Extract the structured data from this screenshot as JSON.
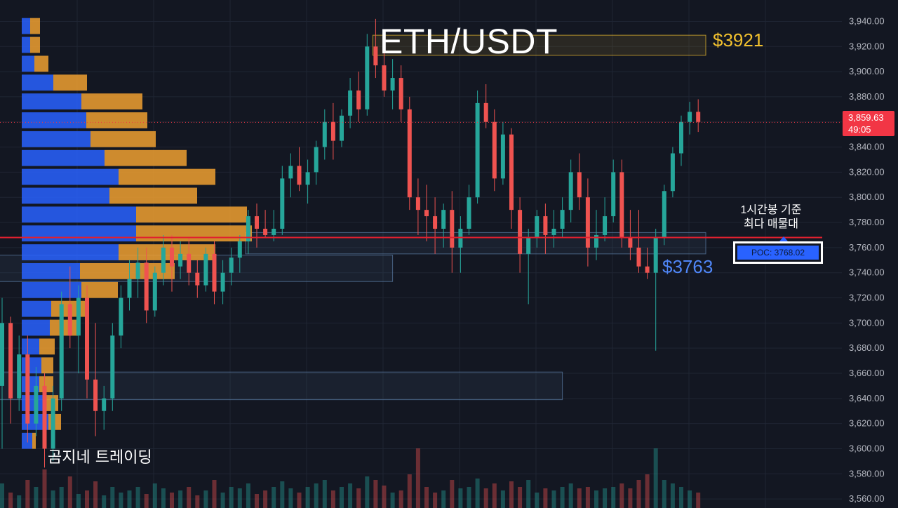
{
  "chart_data": {
    "type": "candlestick",
    "title": "ETH/USDT",
    "ylim": [
      3557,
      3945
    ],
    "y_ticks": [
      "3,940.00",
      "3,920.00",
      "3,900.00",
      "3,880.00",
      "3,860.00",
      "3,840.00",
      "3,820.00",
      "3,800.00",
      "3,780.00",
      "3,760.00",
      "3,740.00",
      "3,720.00",
      "3,700.00",
      "3,680.00",
      "3,660.00",
      "3,640.00",
      "3,620.00",
      "3,600.00",
      "3,580.00",
      "3,560.00"
    ],
    "y_tick_values": [
      3940,
      3920,
      3900,
      3880,
      3860,
      3840,
      3820,
      3800,
      3780,
      3760,
      3740,
      3720,
      3700,
      3680,
      3660,
      3640,
      3620,
      3600,
      3580,
      3560
    ],
    "last_price": "3,859.63",
    "last_price_value": 3859.63,
    "countdown": "49:05",
    "poc_value": 3768.0,
    "grid": true,
    "candles": [
      [
        3650,
        3720,
        3600,
        3700
      ],
      [
        3700,
        3705,
        3620,
        3640
      ],
      [
        3640,
        3690,
        3630,
        3675
      ],
      [
        3675,
        3690,
        3605,
        3620
      ],
      [
        3620,
        3665,
        3610,
        3650
      ],
      [
        3650,
        3660,
        3585,
        3600
      ],
      [
        3600,
        3650,
        3590,
        3640
      ],
      [
        3640,
        3725,
        3630,
        3715
      ],
      [
        3715,
        3745,
        3680,
        3690
      ],
      [
        3690,
        3730,
        3660,
        3720
      ],
      [
        3720,
        3730,
        3640,
        3655
      ],
      [
        3655,
        3700,
        3610,
        3630
      ],
      [
        3630,
        3650,
        3615,
        3640
      ],
      [
        3640,
        3700,
        3630,
        3690
      ],
      [
        3690,
        3730,
        3680,
        3720
      ],
      [
        3720,
        3750,
        3710,
        3735
      ],
      [
        3735,
        3760,
        3720,
        3748
      ],
      [
        3748,
        3760,
        3700,
        3710
      ],
      [
        3710,
        3745,
        3705,
        3740
      ],
      [
        3740,
        3770,
        3730,
        3760
      ],
      [
        3760,
        3770,
        3725,
        3745
      ],
      [
        3745,
        3765,
        3735,
        3755
      ],
      [
        3755,
        3768,
        3730,
        3740
      ],
      [
        3740,
        3750,
        3720,
        3730
      ],
      [
        3730,
        3760,
        3725,
        3755
      ],
      [
        3755,
        3765,
        3715,
        3725
      ],
      [
        3725,
        3750,
        3715,
        3740
      ],
      [
        3740,
        3760,
        3730,
        3752
      ],
      [
        3752,
        3770,
        3740,
        3765
      ],
      [
        3765,
        3790,
        3755,
        3785
      ],
      [
        3785,
        3795,
        3760,
        3775
      ],
      [
        3775,
        3790,
        3768,
        3770
      ],
      [
        3770,
        3790,
        3765,
        3775
      ],
      [
        3775,
        3825,
        3770,
        3815
      ],
      [
        3815,
        3835,
        3800,
        3825
      ],
      [
        3825,
        3840,
        3805,
        3810
      ],
      [
        3810,
        3830,
        3795,
        3820
      ],
      [
        3820,
        3845,
        3810,
        3840
      ],
      [
        3840,
        3870,
        3830,
        3860
      ],
      [
        3860,
        3875,
        3830,
        3845
      ],
      [
        3845,
        3870,
        3840,
        3865
      ],
      [
        3865,
        3895,
        3855,
        3885
      ],
      [
        3885,
        3900,
        3860,
        3870
      ],
      [
        3870,
        3930,
        3865,
        3920
      ],
      [
        3920,
        3942,
        3895,
        3905
      ],
      [
        3905,
        3920,
        3880,
        3885
      ],
      [
        3885,
        3910,
        3870,
        3895
      ],
      [
        3895,
        3905,
        3860,
        3870
      ],
      [
        3870,
        3880,
        3790,
        3800
      ],
      [
        3800,
        3815,
        3770,
        3790
      ],
      [
        3790,
        3810,
        3765,
        3785
      ],
      [
        3785,
        3800,
        3755,
        3775
      ],
      [
        3775,
        3795,
        3760,
        3790
      ],
      [
        3790,
        3805,
        3740,
        3760
      ],
      [
        3760,
        3785,
        3740,
        3775
      ],
      [
        3775,
        3810,
        3770,
        3800
      ],
      [
        3800,
        3885,
        3795,
        3875
      ],
      [
        3875,
        3890,
        3855,
        3860
      ],
      [
        3860,
        3870,
        3805,
        3815
      ],
      [
        3815,
        3860,
        3810,
        3850
      ],
      [
        3850,
        3855,
        3775,
        3790
      ],
      [
        3790,
        3800,
        3740,
        3755
      ],
      [
        3755,
        3775,
        3715,
        3768
      ],
      [
        3768,
        3790,
        3760,
        3785
      ],
      [
        3785,
        3795,
        3755,
        3770
      ],
      [
        3770,
        3790,
        3760,
        3775
      ],
      [
        3775,
        3800,
        3768,
        3790
      ],
      [
        3790,
        3830,
        3780,
        3820
      ],
      [
        3820,
        3835,
        3790,
        3800
      ],
      [
        3800,
        3815,
        3745,
        3760
      ],
      [
        3760,
        3790,
        3750,
        3770
      ],
      [
        3770,
        3800,
        3765,
        3785
      ],
      [
        3785,
        3830,
        3780,
        3820
      ],
      [
        3820,
        3830,
        3760,
        3768
      ],
      [
        3768,
        3790,
        3750,
        3760
      ],
      [
        3760,
        3790,
        3740,
        3745
      ],
      [
        3745,
        3760,
        3735,
        3740
      ],
      [
        3740,
        3775,
        3678,
        3768
      ],
      [
        3768,
        3810,
        3762,
        3805
      ],
      [
        3805,
        3840,
        3800,
        3835
      ],
      [
        3835,
        3865,
        3825,
        3860
      ],
      [
        3860,
        3876,
        3850,
        3868
      ],
      [
        3868,
        3878,
        3852,
        3860
      ]
    ],
    "volume_profile": [
      {
        "price": 3936,
        "buy": 12,
        "sell": 14
      },
      {
        "price": 3921,
        "buy": 12,
        "sell": 14
      },
      {
        "price": 3906,
        "buy": 18,
        "sell": 20
      },
      {
        "price": 3891,
        "buy": 45,
        "sell": 48
      },
      {
        "price": 3876,
        "buy": 85,
        "sell": 87
      },
      {
        "price": 3861,
        "buy": 92,
        "sell": 87
      },
      {
        "price": 3846,
        "buy": 98,
        "sell": 93
      },
      {
        "price": 3831,
        "buy": 118,
        "sell": 117
      },
      {
        "price": 3816,
        "buy": 138,
        "sell": 138
      },
      {
        "price": 3801,
        "buy": 125,
        "sell": 125
      },
      {
        "price": 3786,
        "buy": 163,
        "sell": 158
      },
      {
        "price": 3771,
        "buy": 163,
        "sell": 165
      },
      {
        "price": 3756,
        "buy": 138,
        "sell": 138
      },
      {
        "price": 3741,
        "buy": 83,
        "sell": 135
      },
      {
        "price": 3726,
        "buy": 85,
        "sell": 52
      },
      {
        "price": 3711,
        "buy": 42,
        "sell": 50
      },
      {
        "price": 3696,
        "buy": 40,
        "sell": 40
      },
      {
        "price": 3681,
        "buy": 25,
        "sell": 22
      },
      {
        "price": 3666,
        "buy": 28,
        "sell": 17
      },
      {
        "price": 3651,
        "buy": 25,
        "sell": 20
      },
      {
        "price": 3636,
        "buy": 30,
        "sell": 22
      },
      {
        "price": 3621,
        "buy": 38,
        "sell": 18
      },
      {
        "price": 3606,
        "buy": 15,
        "sell": 5
      }
    ],
    "volume": [
      35,
      22,
      18,
      40,
      30,
      55,
      25,
      30,
      45,
      20,
      25,
      38,
      18,
      30,
      22,
      25,
      30,
      20,
      35,
      28,
      22,
      25,
      30,
      18,
      25,
      40,
      22,
      30,
      28,
      35,
      20,
      25,
      30,
      38,
      28,
      22,
      30,
      35,
      40,
      25,
      30,
      35,
      28,
      45,
      40,
      32,
      22,
      25,
      48,
      85,
      30,
      22,
      25,
      40,
      28,
      30,
      42,
      28,
      35,
      25,
      38,
      30,
      40,
      22,
      28,
      25,
      30,
      35,
      28,
      30,
      25,
      28,
      30,
      35,
      28,
      40,
      48,
      85,
      40,
      35,
      30,
      25,
      22
    ],
    "zones": [
      {
        "color": "#f2c12e",
        "low": 3913,
        "high": 3929,
        "x_from_candle": 44,
        "x_to_candle": 999
      },
      {
        "color": "#5c7fa8",
        "low": 3755,
        "high": 3772,
        "x_from_candle": 29,
        "x_to_candle": 999
      },
      {
        "color": "#5c7fa8",
        "low": 3733,
        "high": 3754,
        "x_from_candle": 0,
        "x_to_candle": 46
      },
      {
        "color": "#5c7fa8",
        "low": 3639,
        "high": 3661,
        "x_from_candle": 0,
        "x_to_candle": 66
      }
    ]
  },
  "labels": {
    "title": "ETH/USDT",
    "level_gold": "$3921",
    "level_blue": "$3763",
    "note_line1": "1시간봉 기준",
    "note_line2": "최다 매물대",
    "poc_label": "POC: 3768.02",
    "brand": "곰지네 트레이딩"
  },
  "colors": {
    "background": "#131722",
    "grid": "#1f2533",
    "up": "#26a69a",
    "down": "#ef5350",
    "profile_buy": "#2962ff",
    "profile_sell": "#f0a030",
    "poc_line": "#e0202f",
    "last_price_line": "#f23645",
    "gold_zone": "#f2c12e",
    "blue_zone": "#5c7fa8"
  }
}
